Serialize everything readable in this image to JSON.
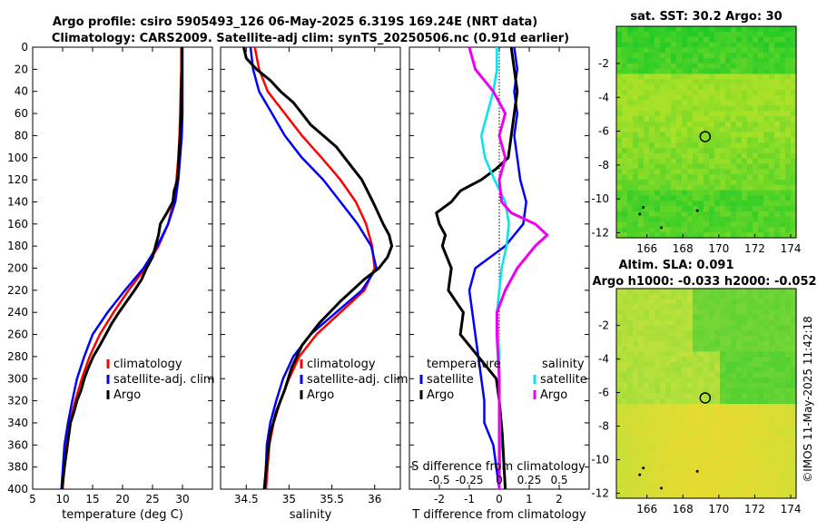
{
  "title": {
    "line1": "Argo profile: csiro 5905493_126 06-May-2025 6.319S 169.24E (NRT data)",
    "line2": "Climatology: CARS2009. Satellite-adj clim: synTS_20250506.nc (0.91d earlier)"
  },
  "copyright": "©IMOS 11-May-2025 11:42:18",
  "colors": {
    "climatology": "#ff0000",
    "satellite": "#0000ff",
    "argo": "#000000",
    "salinity_satellite": "#00e5ee",
    "salinity_argo": "#ee00ee"
  },
  "chart_data": [
    {
      "type": "line",
      "name": "temperature-profile",
      "xlabel": "temperature (deg C)",
      "xlim": [
        5,
        35
      ],
      "xticks": [
        "5",
        "10",
        "15",
        "20",
        "25",
        "30"
      ],
      "ylim": [
        0,
        400
      ],
      "yticks": [
        "0",
        "20",
        "40",
        "60",
        "80",
        "100",
        "120",
        "140",
        "160",
        "180",
        "200",
        "220",
        "240",
        "260",
        "280",
        "300",
        "320",
        "340",
        "360",
        "380",
        "400"
      ],
      "legend": [
        "climatology",
        "satellite-adj. clim",
        "Argo"
      ],
      "series": [
        {
          "name": "climatology",
          "x": [
            29.8,
            29.8,
            29.7,
            29.6,
            29.5,
            29.3,
            29.0,
            28.5,
            27.6,
            26.0,
            23.8,
            21.0,
            18.5,
            16.2,
            14.5,
            13.2,
            12.1,
            11.2,
            10.5,
            10.0
          ],
          "y": [
            0,
            20,
            40,
            60,
            80,
            100,
            120,
            140,
            160,
            180,
            200,
            220,
            240,
            260,
            280,
            300,
            320,
            340,
            360,
            400
          ]
        },
        {
          "name": "satellite-adj. clim",
          "x": [
            30.0,
            30.0,
            30.0,
            30.0,
            29.9,
            29.6,
            29.3,
            28.8,
            27.6,
            25.8,
            23.5,
            20.4,
            17.5,
            15.0,
            13.6,
            12.4,
            11.6,
            10.9,
            10.3,
            9.8
          ],
          "y": [
            0,
            20,
            40,
            60,
            80,
            100,
            120,
            140,
            160,
            180,
            200,
            220,
            240,
            260,
            280,
            300,
            320,
            340,
            360,
            400
          ]
        },
        {
          "name": "Argo",
          "x": [
            29.9,
            29.9,
            29.8,
            29.8,
            29.6,
            29.4,
            29.2,
            28.6,
            28.4,
            27.4,
            26.3,
            26.0,
            25.5,
            25.0,
            24.0,
            23.2,
            22.0,
            20.7,
            19.4,
            18.2,
            17.2,
            16.2,
            15.1,
            14.3,
            13.6,
            13.1,
            12.4,
            11.9,
            11.3,
            10.8,
            10.3,
            9.9
          ],
          "y": [
            0,
            20,
            40,
            60,
            80,
            100,
            120,
            130,
            140,
            150,
            160,
            170,
            180,
            190,
            200,
            210,
            220,
            230,
            240,
            250,
            260,
            270,
            280,
            290,
            300,
            310,
            320,
            330,
            340,
            360,
            380,
            400
          ]
        }
      ]
    },
    {
      "type": "line",
      "name": "salinity-profile",
      "xlabel": "salinity",
      "xlim": [
        34.2,
        36.3
      ],
      "xticks": [
        "34.5",
        "35",
        "35.5",
        "36"
      ],
      "ylim": [
        0,
        400
      ],
      "legend": [
        "climatology",
        "satellite-adj. clim",
        "Argo"
      ],
      "series": [
        {
          "name": "climatology",
          "x": [
            34.6,
            34.65,
            34.75,
            34.95,
            35.15,
            35.38,
            35.6,
            35.78,
            35.9,
            35.97,
            36.0,
            35.88,
            35.6,
            35.32,
            35.12,
            35.0,
            34.9,
            34.82,
            34.77,
            34.73
          ],
          "y": [
            0,
            20,
            40,
            60,
            80,
            100,
            120,
            140,
            160,
            180,
            200,
            220,
            240,
            260,
            280,
            300,
            320,
            340,
            360,
            400
          ]
        },
        {
          "name": "satellite-adj. clim",
          "x": [
            34.55,
            34.58,
            34.65,
            34.8,
            34.95,
            35.15,
            35.4,
            35.6,
            35.8,
            35.96,
            36.02,
            35.85,
            35.55,
            35.25,
            35.05,
            34.93,
            34.85,
            34.78,
            34.74,
            34.72
          ],
          "y": [
            0,
            20,
            40,
            60,
            80,
            100,
            120,
            140,
            160,
            180,
            200,
            220,
            240,
            260,
            280,
            300,
            320,
            340,
            360,
            400
          ]
        },
        {
          "name": "Argo",
          "x": [
            34.47,
            34.5,
            34.62,
            34.78,
            34.9,
            35.05,
            35.15,
            35.25,
            35.4,
            35.55,
            35.65,
            35.75,
            35.85,
            35.98,
            36.1,
            36.17,
            36.2,
            36.15,
            36.05,
            35.88,
            35.6,
            35.35,
            35.15,
            35.03,
            34.95,
            34.85,
            34.78,
            34.74,
            34.71
          ],
          "y": [
            0,
            10,
            20,
            30,
            40,
            50,
            60,
            70,
            80,
            90,
            100,
            110,
            120,
            140,
            160,
            170,
            180,
            190,
            200,
            210,
            230,
            250,
            270,
            290,
            310,
            330,
            350,
            375,
            400
          ]
        }
      ]
    },
    {
      "type": "line",
      "name": "difference-profile",
      "xlabel": "T difference from climatology",
      "xlabel_top": "S difference from climatology",
      "xlim": [
        -3,
        3
      ],
      "xticks": [
        "-2",
        "-1",
        "0",
        "1",
        "2"
      ],
      "xticks_top": [
        "-0.5",
        "-0.25",
        "0",
        "0.25",
        "0.5"
      ],
      "ylim": [
        0,
        400
      ],
      "legend_temperature_title": "temperature",
      "legend_salinity_title": "salinity",
      "legend_temperature": [
        "satellite",
        "Argo"
      ],
      "legend_salinity": [
        "satellite",
        "Argo"
      ],
      "series": [
        {
          "name": "T satellite",
          "x": [
            0.5,
            0.6,
            0.5,
            0.6,
            0.5,
            0.6,
            0.7,
            0.9,
            0.8,
            0.2,
            -0.8,
            -1.0,
            -0.9,
            -0.8,
            -0.7,
            -0.6,
            -0.5,
            -0.5,
            -0.2,
            0.0
          ],
          "y": [
            0,
            20,
            40,
            60,
            80,
            100,
            120,
            140,
            160,
            180,
            200,
            220,
            240,
            260,
            280,
            300,
            320,
            340,
            360,
            400
          ]
        },
        {
          "name": "T Argo",
          "x": [
            0.4,
            0.5,
            0.6,
            0.5,
            0.4,
            0.3,
            -0.1,
            -0.6,
            -1.3,
            -1.6,
            -2.1,
            -2.0,
            -1.8,
            -1.9,
            -1.6,
            -1.7,
            -1.2,
            -1.3,
            -1.0,
            -0.7,
            -0.4,
            -0.1,
            0.0,
            0.1,
            0.2
          ],
          "y": [
            0,
            20,
            40,
            60,
            80,
            100,
            110,
            120,
            130,
            140,
            150,
            160,
            170,
            180,
            200,
            220,
            240,
            260,
            270,
            280,
            290,
            300,
            320,
            350,
            400
          ]
        },
        {
          "name": "S satellite",
          "x": [
            -0.02,
            -0.02,
            -0.05,
            -0.1,
            -0.15,
            -0.12,
            -0.04,
            0.05,
            0.08,
            0.06,
            0.02,
            0.0,
            -0.02,
            -0.01,
            0.0,
            0.0,
            0.0,
            0.01,
            0.0
          ],
          "y": [
            0,
            20,
            40,
            60,
            80,
            100,
            120,
            140,
            160,
            180,
            200,
            220,
            240,
            260,
            280,
            300,
            320,
            360,
            400
          ]
        },
        {
          "name": "S Argo",
          "x": [
            -0.25,
            -0.2,
            -0.05,
            0.05,
            0.0,
            0.05,
            0.0,
            0.02,
            0.1,
            0.3,
            0.4,
            0.3,
            0.15,
            0.05,
            -0.02,
            -0.02,
            0.0,
            0.0,
            0.0
          ],
          "y": [
            0,
            20,
            40,
            60,
            80,
            100,
            120,
            140,
            150,
            160,
            170,
            180,
            200,
            220,
            240,
            260,
            300,
            350,
            400
          ]
        }
      ]
    },
    {
      "type": "heatmap",
      "name": "satellite-sst-map",
      "title": "sat. SST: 30.2 Argo: 30",
      "xlim": [
        164.3,
        174.3
      ],
      "ylim": [
        -12.3,
        0.2
      ],
      "xticks": [
        "166",
        "168",
        "170",
        "172",
        "174"
      ],
      "yticks": [
        "-2",
        "-4",
        "-6",
        "-8",
        "-10",
        "-12"
      ],
      "argo_position": {
        "lon": 169.24,
        "lat": -6.319
      }
    },
    {
      "type": "heatmap",
      "name": "altimetry-sla-map",
      "title_line1": "Altim. SLA: 0.091",
      "title_line2": "Argo h1000: -0.033 h2000: -0.052",
      "xlim": [
        164.3,
        174.3
      ],
      "ylim": [
        -12.3,
        0.2
      ],
      "xticks": [
        "166",
        "168",
        "170",
        "172",
        "174"
      ],
      "yticks": [
        "-2",
        "-4",
        "-6",
        "-8",
        "-10",
        "-12"
      ],
      "argo_position": {
        "lon": 169.24,
        "lat": -6.319
      }
    }
  ]
}
